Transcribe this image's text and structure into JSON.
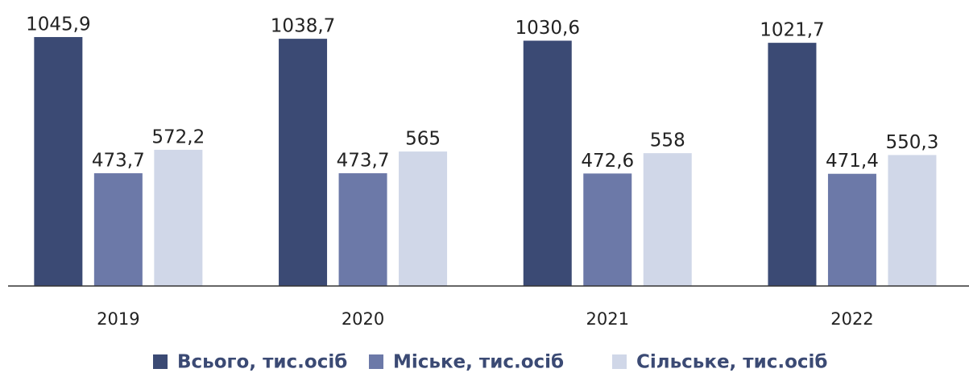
{
  "chart_data": {
    "type": "bar",
    "categories": [
      "2019",
      "2020",
      "2021",
      "2022"
    ],
    "series": [
      {
        "name": "Всього, тис.осіб",
        "color": "#3b4a74",
        "values": [
          1045.9,
          1038.7,
          1030.6,
          1021.7
        ],
        "value_labels": [
          "1045,9",
          "1038,7",
          "1030,6",
          "1021,7"
        ]
      },
      {
        "name": "Міське, тис.осіб",
        "color": "#6c79a8",
        "values": [
          473.7,
          473.7,
          472.6,
          471.4
        ],
        "value_labels": [
          "473,7",
          "473,7",
          "472,6",
          "471,4"
        ]
      },
      {
        "name": "Сільське, тис.осіб",
        "color": "#d0d7e8",
        "values": [
          572.2,
          565,
          558,
          550.3
        ],
        "value_labels": [
          "572,2",
          "565",
          "558",
          "550,3"
        ]
      }
    ],
    "ylim": [
      0,
      1100
    ],
    "legend": "bottom"
  }
}
